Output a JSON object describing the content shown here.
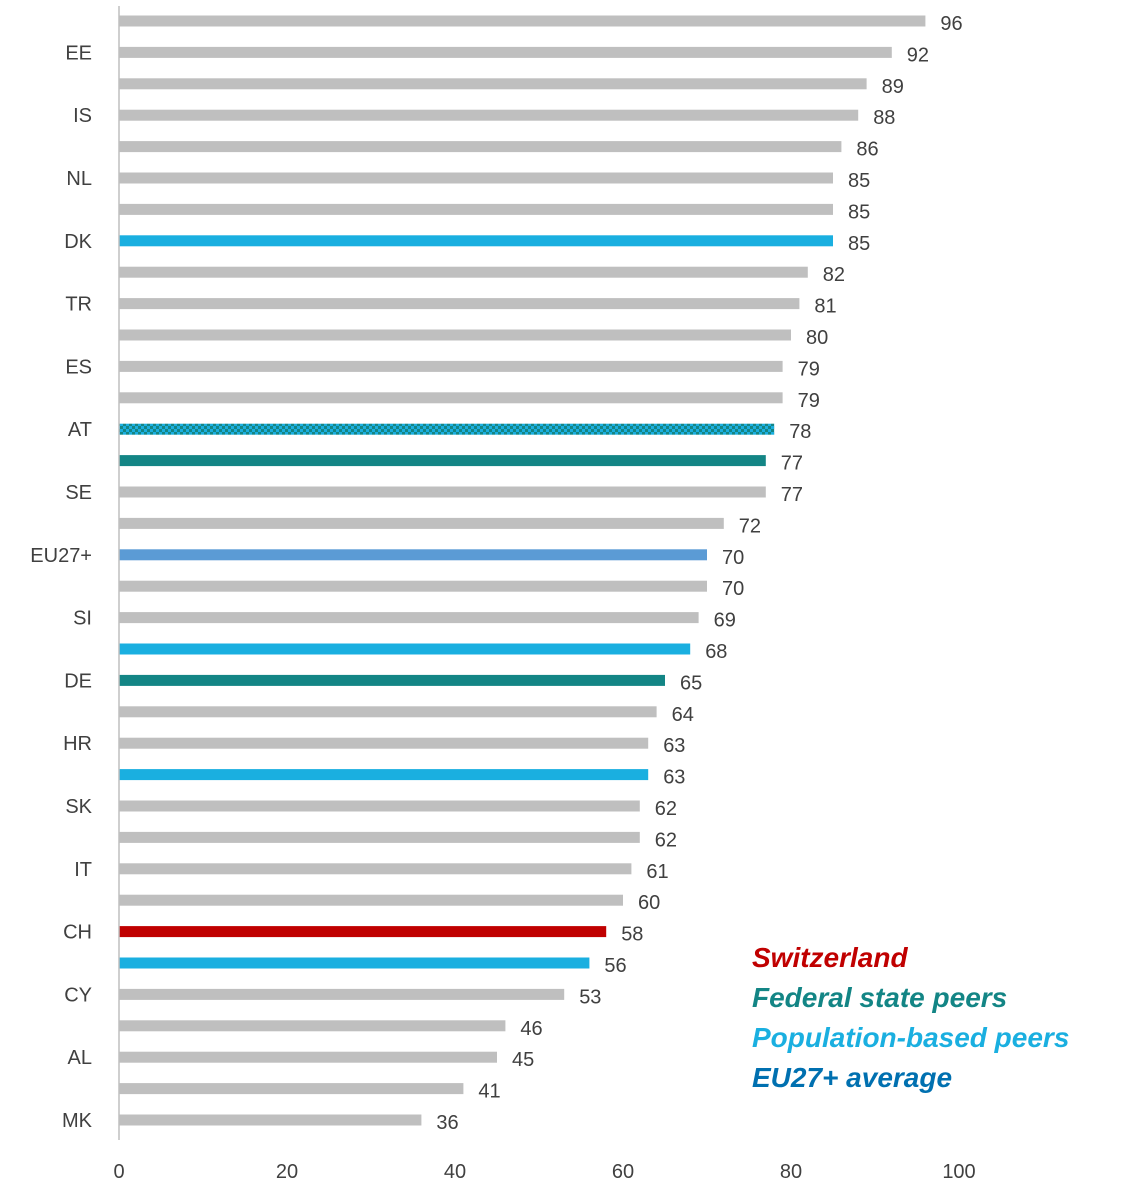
{
  "colors": {
    "default": "#bfbfbf",
    "switzerland": "#c00000",
    "federal": "#138585",
    "population": "#1aafe0",
    "eu": "#5b9bd5",
    "eu_legend": "#0070b0",
    "axis": "#bfbfbf"
  },
  "chart_data": {
    "type": "bar",
    "orientation": "horizontal",
    "xlim": [
      0,
      100
    ],
    "xticks": [
      0,
      20,
      40,
      60,
      80,
      100
    ],
    "grid": false,
    "legend_position": "bottom-right",
    "categories": [
      "",
      "EE",
      "",
      "IS",
      "",
      "NL",
      "",
      "DK",
      "",
      "TR",
      "",
      "ES",
      "",
      "AT",
      "",
      "SE",
      "",
      "EU27+",
      "",
      "SI",
      "",
      "DE",
      "",
      "HR",
      "",
      "SK",
      "",
      "IT",
      "",
      "CH",
      "",
      "CY",
      "",
      "AL",
      "",
      "MK"
    ],
    "values": [
      96,
      92,
      89,
      88,
      86,
      85,
      85,
      85,
      82,
      81,
      80,
      79,
      79,
      78,
      77,
      77,
      72,
      70,
      70,
      69,
      68,
      65,
      64,
      63,
      63,
      62,
      62,
      61,
      60,
      58,
      56,
      53,
      46,
      45,
      41,
      36
    ],
    "groups": [
      "default",
      "default",
      "default",
      "default",
      "default",
      "default",
      "default",
      "population",
      "default",
      "default",
      "default",
      "default",
      "default",
      "federal-population",
      "federal",
      "default",
      "default",
      "eu",
      "default",
      "default",
      "population",
      "federal",
      "default",
      "default",
      "population",
      "default",
      "default",
      "default",
      "default",
      "switzerland",
      "population",
      "default",
      "default",
      "default",
      "default",
      "default"
    ]
  },
  "legend": {
    "items": [
      {
        "label": "Switzerland",
        "color": "#c00000"
      },
      {
        "label": "Federal state peers",
        "color": "#138585"
      },
      {
        "label": "Population-based peers",
        "color": "#1aafe0"
      },
      {
        "label": "EU27+ average",
        "color": "#0070b0"
      }
    ]
  }
}
